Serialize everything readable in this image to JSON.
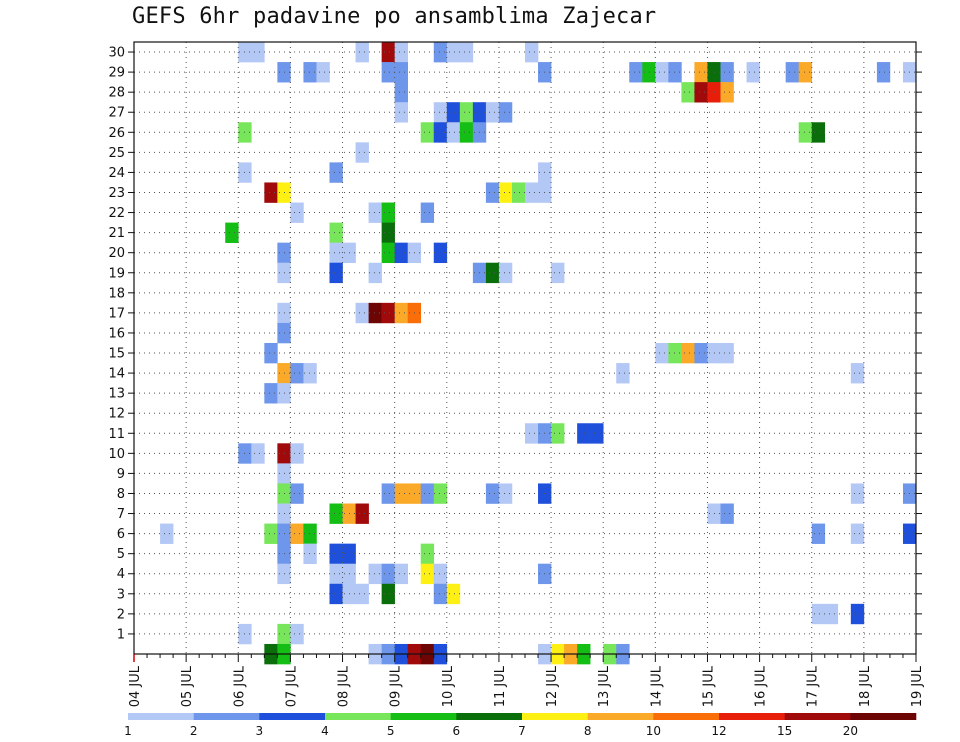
{
  "chart_data": {
    "type": "heatmap",
    "title": "GEFS 6hr padavine po ansamblima Zajecar",
    "x_tick_labels": [
      "04 JUL",
      "05 JUL",
      "06 JUL",
      "07 JUL",
      "08 JUL",
      "09 JUL",
      "10 JUL",
      "11 JUL",
      "12 JUL",
      "13 JUL",
      "14 JUL",
      "15 JUL",
      "16 JUL",
      "17 JUL",
      "18 JUL",
      "19 JUL"
    ],
    "x_steps_per_day": 4,
    "y_tick_labels": [
      "1",
      "2",
      "3",
      "4",
      "5",
      "6",
      "7",
      "8",
      "9",
      "10",
      "11",
      "12",
      "13",
      "14",
      "15",
      "16",
      "17",
      "18",
      "19",
      "20",
      "21",
      "22",
      "23",
      "24",
      "25",
      "26",
      "27",
      "28",
      "29",
      "30"
    ],
    "y_range": [
      0,
      30
    ],
    "grid": true,
    "color_scale": {
      "labels": [
        "1",
        "2",
        "3",
        "4",
        "5",
        "6",
        "7",
        "8",
        "10",
        "12",
        "15",
        "20"
      ],
      "colors": [
        "#b4c8f5",
        "#6e96ea",
        "#1e50dc",
        "#78e65a",
        "#14be14",
        "#0a6e0a",
        "#fff014",
        "#faaa28",
        "#fa6e0a",
        "#e61e0a",
        "#a00a0a",
        "#6e0505"
      ]
    },
    "cells": [
      {
        "x": "06 JUL 00z",
        "member": 30,
        "class": 0
      },
      {
        "x": "06 JUL 06z",
        "member": 30,
        "class": 0
      },
      {
        "x": "08 JUL 06z",
        "member": 30,
        "class": 0
      },
      {
        "x": "08 JUL 18z",
        "member": 30,
        "class": 10
      },
      {
        "x": "09 JUL 00z",
        "member": 30,
        "class": 0
      },
      {
        "x": "09 JUL 18z",
        "member": 30,
        "class": 1
      },
      {
        "x": "10 JUL 00z",
        "member": 30,
        "class": 0
      },
      {
        "x": "10 JUL 06z",
        "member": 30,
        "class": 0
      },
      {
        "x": "11 JUL 12z",
        "member": 30,
        "class": 0
      },
      {
        "x": "06 JUL 18z",
        "member": 29,
        "class": 1
      },
      {
        "x": "07 JUL 06z",
        "member": 29,
        "class": 1
      },
      {
        "x": "07 JUL 12z",
        "member": 29,
        "class": 0
      },
      {
        "x": "08 JUL 18z",
        "member": 29,
        "class": 1
      },
      {
        "x": "09 JUL 00z",
        "member": 29,
        "class": 1
      },
      {
        "x": "11 JUL 18z",
        "member": 29,
        "class": 1
      },
      {
        "x": "13 JUL 12z",
        "member": 29,
        "class": 1
      },
      {
        "x": "13 JUL 18z",
        "member": 29,
        "class": 4
      },
      {
        "x": "14 JUL 00z",
        "member": 29,
        "class": 0
      },
      {
        "x": "14 JUL 06z",
        "member": 29,
        "class": 1
      },
      {
        "x": "14 JUL 18z",
        "member": 29,
        "class": 7
      },
      {
        "x": "15 JUL 00z",
        "member": 29,
        "class": 5
      },
      {
        "x": "15 JUL 06z",
        "member": 29,
        "class": 1
      },
      {
        "x": "15 JUL 18z",
        "member": 29,
        "class": 0
      },
      {
        "x": "16 JUL 12z",
        "member": 29,
        "class": 1
      },
      {
        "x": "16 JUL 18z",
        "member": 29,
        "class": 7
      },
      {
        "x": "18 JUL 06z",
        "member": 29,
        "class": 1
      },
      {
        "x": "18 JUL 18z",
        "member": 29,
        "class": 0
      },
      {
        "x": "09 JUL 00z",
        "member": 28,
        "class": 1
      },
      {
        "x": "14 JUL 12z",
        "member": 28,
        "class": 3
      },
      {
        "x": "14 JUL 18z",
        "member": 28,
        "class": 10
      },
      {
        "x": "15 JUL 00z",
        "member": 28,
        "class": 9
      },
      {
        "x": "15 JUL 06z",
        "member": 28,
        "class": 7
      },
      {
        "x": "09 JUL 00z",
        "member": 27,
        "class": 0
      },
      {
        "x": "09 JUL 18z",
        "member": 27,
        "class": 0
      },
      {
        "x": "10 JUL 00z",
        "member": 27,
        "class": 2
      },
      {
        "x": "10 JUL 06z",
        "member": 27,
        "class": 3
      },
      {
        "x": "10 JUL 12z",
        "member": 27,
        "class": 2
      },
      {
        "x": "10 JUL 18z",
        "member": 27,
        "class": 0
      },
      {
        "x": "11 JUL 00z",
        "member": 27,
        "class": 1
      },
      {
        "x": "06 JUL 00z",
        "member": 26,
        "class": 3
      },
      {
        "x": "09 JUL 12z",
        "member": 26,
        "class": 3
      },
      {
        "x": "09 JUL 18z",
        "member": 26,
        "class": 2
      },
      {
        "x": "10 JUL 00z",
        "member": 26,
        "class": 0
      },
      {
        "x": "10 JUL 06z",
        "member": 26,
        "class": 4
      },
      {
        "x": "10 JUL 12z",
        "member": 26,
        "class": 1
      },
      {
        "x": "16 JUL 18z",
        "member": 26,
        "class": 3
      },
      {
        "x": "17 JUL 00z",
        "member": 26,
        "class": 5
      },
      {
        "x": "08 JUL 06z",
        "member": 25,
        "class": 0
      },
      {
        "x": "06 JUL 00z",
        "member": 24,
        "class": 0
      },
      {
        "x": "07 JUL 18z",
        "member": 24,
        "class": 1
      },
      {
        "x": "11 JUL 18z",
        "member": 24,
        "class": 0
      },
      {
        "x": "06 JUL 12z",
        "member": 23,
        "class": 10
      },
      {
        "x": "06 JUL 18z",
        "member": 23,
        "class": 6
      },
      {
        "x": "10 JUL 18z",
        "member": 23,
        "class": 1
      },
      {
        "x": "11 JUL 00z",
        "member": 23,
        "class": 6
      },
      {
        "x": "11 JUL 06z",
        "member": 23,
        "class": 3
      },
      {
        "x": "11 JUL 12z",
        "member": 23,
        "class": 0
      },
      {
        "x": "11 JUL 18z",
        "member": 23,
        "class": 0
      },
      {
        "x": "07 JUL 00z",
        "member": 22,
        "class": 0
      },
      {
        "x": "08 JUL 12z",
        "member": 22,
        "class": 0
      },
      {
        "x": "08 JUL 18z",
        "member": 22,
        "class": 4
      },
      {
        "x": "09 JUL 12z",
        "member": 22,
        "class": 1
      },
      {
        "x": "05 JUL 18z",
        "member": 21,
        "class": 4
      },
      {
        "x": "07 JUL 18z",
        "member": 21,
        "class": 3
      },
      {
        "x": "08 JUL 18z",
        "member": 21,
        "class": 5
      },
      {
        "x": "06 JUL 18z",
        "member": 20,
        "class": 1
      },
      {
        "x": "07 JUL 18z",
        "member": 20,
        "class": 0
      },
      {
        "x": "08 JUL 00z",
        "member": 20,
        "class": 0
      },
      {
        "x": "08 JUL 18z",
        "member": 20,
        "class": 4
      },
      {
        "x": "09 JUL 00z",
        "member": 20,
        "class": 2
      },
      {
        "x": "09 JUL 06z",
        "member": 20,
        "class": 0
      },
      {
        "x": "09 JUL 18z",
        "member": 20,
        "class": 2
      },
      {
        "x": "06 JUL 18z",
        "member": 19,
        "class": 0
      },
      {
        "x": "07 JUL 18z",
        "member": 19,
        "class": 2
      },
      {
        "x": "08 JUL 12z",
        "member": 19,
        "class": 0
      },
      {
        "x": "10 JUL 12z",
        "member": 19,
        "class": 1
      },
      {
        "x": "10 JUL 18z",
        "member": 19,
        "class": 5
      },
      {
        "x": "11 JUL 00z",
        "member": 19,
        "class": 0
      },
      {
        "x": "12 JUL 00z",
        "member": 19,
        "class": 0
      },
      {
        "x": "06 JUL 18z",
        "member": 17,
        "class": 0
      },
      {
        "x": "08 JUL 06z",
        "member": 17,
        "class": 0
      },
      {
        "x": "08 JUL 12z",
        "member": 17,
        "class": 11
      },
      {
        "x": "08 JUL 18z",
        "member": 17,
        "class": 10
      },
      {
        "x": "09 JUL 00z",
        "member": 17,
        "class": 7
      },
      {
        "x": "09 JUL 06z",
        "member": 17,
        "class": 8
      },
      {
        "x": "06 JUL 18z",
        "member": 16,
        "class": 1
      },
      {
        "x": "06 JUL 12z",
        "member": 15,
        "class": 1
      },
      {
        "x": "14 JUL 00z",
        "member": 15,
        "class": 0
      },
      {
        "x": "14 JUL 06z",
        "member": 15,
        "class": 3
      },
      {
        "x": "14 JUL 12z",
        "member": 15,
        "class": 7
      },
      {
        "x": "14 JUL 18z",
        "member": 15,
        "class": 1
      },
      {
        "x": "15 JUL 00z",
        "member": 15,
        "class": 0
      },
      {
        "x": "15 JUL 06z",
        "member": 15,
        "class": 0
      },
      {
        "x": "06 JUL 18z",
        "member": 14,
        "class": 7
      },
      {
        "x": "07 JUL 00z",
        "member": 14,
        "class": 1
      },
      {
        "x": "07 JUL 06z",
        "member": 14,
        "class": 0
      },
      {
        "x": "13 JUL 06z",
        "member": 14,
        "class": 0
      },
      {
        "x": "17 JUL 18z",
        "member": 14,
        "class": 0
      },
      {
        "x": "06 JUL 12z",
        "member": 13,
        "class": 1
      },
      {
        "x": "06 JUL 18z",
        "member": 13,
        "class": 0
      },
      {
        "x": "11 JUL 12z",
        "member": 11,
        "class": 0
      },
      {
        "x": "11 JUL 18z",
        "member": 11,
        "class": 1
      },
      {
        "x": "12 JUL 00z",
        "member": 11,
        "class": 3
      },
      {
        "x": "12 JUL 12z",
        "member": 11,
        "class": 2
      },
      {
        "x": "12 JUL 18z",
        "member": 11,
        "class": 2
      },
      {
        "x": "06 JUL 00z",
        "member": 10,
        "class": 1
      },
      {
        "x": "06 JUL 06z",
        "member": 10,
        "class": 0
      },
      {
        "x": "06 JUL 18z",
        "member": 10,
        "class": 10
      },
      {
        "x": "07 JUL 00z",
        "member": 10,
        "class": 0
      },
      {
        "x": "06 JUL 18z",
        "member": 9,
        "class": 0
      },
      {
        "x": "06 JUL 18z",
        "member": 8,
        "class": 3
      },
      {
        "x": "07 JUL 00z",
        "member": 8,
        "class": 1
      },
      {
        "x": "08 JUL 18z",
        "member": 8,
        "class": 1
      },
      {
        "x": "09 JUL 00z",
        "member": 8,
        "class": 7
      },
      {
        "x": "09 JUL 06z",
        "member": 8,
        "class": 7
      },
      {
        "x": "09 JUL 12z",
        "member": 8,
        "class": 1
      },
      {
        "x": "09 JUL 18z",
        "member": 8,
        "class": 3
      },
      {
        "x": "10 JUL 18z",
        "member": 8,
        "class": 1
      },
      {
        "x": "11 JUL 00z",
        "member": 8,
        "class": 0
      },
      {
        "x": "11 JUL 18z",
        "member": 8,
        "class": 2
      },
      {
        "x": "17 JUL 18z",
        "member": 8,
        "class": 0
      },
      {
        "x": "18 JUL 18z",
        "member": 8,
        "class": 1
      },
      {
        "x": "06 JUL 18z",
        "member": 7,
        "class": 0
      },
      {
        "x": "07 JUL 18z",
        "member": 7,
        "class": 4
      },
      {
        "x": "08 JUL 00z",
        "member": 7,
        "class": 7
      },
      {
        "x": "08 JUL 06z",
        "member": 7,
        "class": 10
      },
      {
        "x": "15 JUL 00z",
        "member": 7,
        "class": 0
      },
      {
        "x": "15 JUL 06z",
        "member": 7,
        "class": 1
      },
      {
        "x": "04 JUL 12z",
        "member": 6,
        "class": 0
      },
      {
        "x": "06 JUL 12z",
        "member": 6,
        "class": 3
      },
      {
        "x": "06 JUL 18z",
        "member": 6,
        "class": 1
      },
      {
        "x": "07 JUL 00z",
        "member": 6,
        "class": 7
      },
      {
        "x": "07 JUL 06z",
        "member": 6,
        "class": 4
      },
      {
        "x": "17 JUL 00z",
        "member": 6,
        "class": 1
      },
      {
        "x": "17 JUL 18z",
        "member": 6,
        "class": 0
      },
      {
        "x": "18 JUL 18z",
        "member": 6,
        "class": 2
      },
      {
        "x": "06 JUL 18z",
        "member": 5,
        "class": 1
      },
      {
        "x": "07 JUL 06z",
        "member": 5,
        "class": 0
      },
      {
        "x": "07 JUL 18z",
        "member": 5,
        "class": 2
      },
      {
        "x": "08 JUL 00z",
        "member": 5,
        "class": 2
      },
      {
        "x": "09 JUL 12z",
        "member": 5,
        "class": 3
      },
      {
        "x": "06 JUL 18z",
        "member": 4,
        "class": 0
      },
      {
        "x": "07 JUL 18z",
        "member": 4,
        "class": 0
      },
      {
        "x": "08 JUL 00z",
        "member": 4,
        "class": 0
      },
      {
        "x": "08 JUL 12z",
        "member": 4,
        "class": 0
      },
      {
        "x": "08 JUL 18z",
        "member": 4,
        "class": 1
      },
      {
        "x": "09 JUL 00z",
        "member": 4,
        "class": 0
      },
      {
        "x": "09 JUL 12z",
        "member": 4,
        "class": 6
      },
      {
        "x": "09 JUL 18z",
        "member": 4,
        "class": 0
      },
      {
        "x": "11 JUL 18z",
        "member": 4,
        "class": 1
      },
      {
        "x": "07 JUL 18z",
        "member": 3,
        "class": 2
      },
      {
        "x": "08 JUL 00z",
        "member": 3,
        "class": 0
      },
      {
        "x": "08 JUL 06z",
        "member": 3,
        "class": 0
      },
      {
        "x": "08 JUL 18z",
        "member": 3,
        "class": 5
      },
      {
        "x": "09 JUL 18z",
        "member": 3,
        "class": 1
      },
      {
        "x": "10 JUL 00z",
        "member": 3,
        "class": 6
      },
      {
        "x": "17 JUL 00z",
        "member": 2,
        "class": 0
      },
      {
        "x": "17 JUL 06z",
        "member": 2,
        "class": 0
      },
      {
        "x": "17 JUL 18z",
        "member": 2,
        "class": 2
      },
      {
        "x": "06 JUL 00z",
        "member": 1,
        "class": 0
      },
      {
        "x": "06 JUL 18z",
        "member": 1,
        "class": 3
      },
      {
        "x": "07 JUL 00z",
        "member": 1,
        "class": 0
      },
      {
        "x": "06 JUL 12z",
        "member": 0,
        "class": 5
      },
      {
        "x": "06 JUL 18z",
        "member": 0,
        "class": 4
      },
      {
        "x": "08 JUL 12z",
        "member": 0,
        "class": 0
      },
      {
        "x": "08 JUL 18z",
        "member": 0,
        "class": 1
      },
      {
        "x": "09 JUL 00z",
        "member": 0,
        "class": 2
      },
      {
        "x": "09 JUL 06z",
        "member": 0,
        "class": 10
      },
      {
        "x": "09 JUL 12z",
        "member": 0,
        "class": 11
      },
      {
        "x": "09 JUL 18z",
        "member": 0,
        "class": 2
      },
      {
        "x": "11 JUL 18z",
        "member": 0,
        "class": 0
      },
      {
        "x": "12 JUL 00z",
        "member": 0,
        "class": 6
      },
      {
        "x": "12 JUL 06z",
        "member": 0,
        "class": 7
      },
      {
        "x": "12 JUL 12z",
        "member": 0,
        "class": 4
      },
      {
        "x": "13 JUL 00z",
        "member": 0,
        "class": 3
      },
      {
        "x": "13 JUL 06z",
        "member": 0,
        "class": 1
      }
    ]
  }
}
